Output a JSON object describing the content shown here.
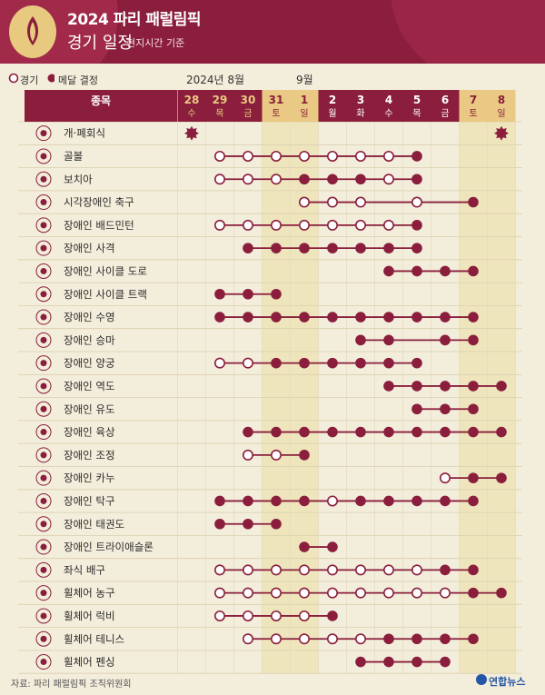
{
  "title": {
    "line1": "2024 파리 패럴림픽",
    "line2": "경기 일정",
    "sub": "현지시간 기준"
  },
  "legend": {
    "match": "경기",
    "medal": "메달 결정"
  },
  "months": {
    "aug": "2024년 8월",
    "sep": "9월"
  },
  "table_header": "종목",
  "colors": {
    "maroon": "#8a1e3c",
    "gold": "#e9c983",
    "cream": "#f4efdf",
    "line": "#8a1e3c"
  },
  "days": [
    {
      "num": "28",
      "wd": "수"
    },
    {
      "num": "29",
      "wd": "목"
    },
    {
      "num": "30",
      "wd": "금"
    },
    {
      "num": "31",
      "wd": "토"
    },
    {
      "num": "1",
      "wd": "일"
    },
    {
      "num": "2",
      "wd": "월"
    },
    {
      "num": "3",
      "wd": "화"
    },
    {
      "num": "4",
      "wd": "수"
    },
    {
      "num": "5",
      "wd": "목"
    },
    {
      "num": "6",
      "wd": "금"
    },
    {
      "num": "7",
      "wd": "토"
    },
    {
      "num": "8",
      "wd": "일"
    }
  ],
  "weekend_days": [
    3,
    4,
    10,
    11
  ],
  "sports": [
    {
      "name": "개·폐회식",
      "icon": "ceremony-icon",
      "ceremony": [
        0,
        11
      ],
      "cells": [
        0,
        0,
        0,
        0,
        0,
        0,
        0,
        0,
        0,
        0,
        0,
        0
      ]
    },
    {
      "name": "골볼",
      "icon": "goalball-icon",
      "cells": [
        0,
        1,
        1,
        1,
        1,
        1,
        1,
        1,
        2,
        0,
        0,
        0
      ]
    },
    {
      "name": "보치아",
      "icon": "boccia-icon",
      "cells": [
        0,
        1,
        1,
        1,
        2,
        2,
        2,
        1,
        2,
        0,
        0,
        0
      ]
    },
    {
      "name": "시각장애인 축구",
      "icon": "blind-football-icon",
      "cells": [
        0,
        0,
        0,
        0,
        1,
        1,
        1,
        0,
        1,
        0,
        2,
        0
      ]
    },
    {
      "name": "장애인 배드민턴",
      "icon": "badminton-icon",
      "cells": [
        0,
        1,
        1,
        1,
        1,
        1,
        1,
        1,
        2,
        0,
        0,
        0
      ]
    },
    {
      "name": "장애인 사격",
      "icon": "shooting-icon",
      "cells": [
        0,
        0,
        2,
        2,
        2,
        2,
        2,
        2,
        2,
        0,
        0,
        0
      ]
    },
    {
      "name": "장애인 사이클 도로",
      "icon": "road-cycling-icon",
      "cells": [
        0,
        0,
        0,
        0,
        0,
        0,
        0,
        2,
        2,
        2,
        2,
        0
      ]
    },
    {
      "name": "장애인 사이클 트랙",
      "icon": "track-cycling-icon",
      "cells": [
        0,
        2,
        2,
        2,
        0,
        0,
        0,
        0,
        0,
        0,
        0,
        0
      ]
    },
    {
      "name": "장애인 수영",
      "icon": "swimming-icon",
      "cells": [
        0,
        2,
        2,
        2,
        2,
        2,
        2,
        2,
        2,
        2,
        2,
        0
      ]
    },
    {
      "name": "장애인 승마",
      "icon": "equestrian-icon",
      "cells": [
        0,
        0,
        0,
        0,
        0,
        0,
        2,
        2,
        0,
        2,
        2,
        0
      ]
    },
    {
      "name": "장애인 양궁",
      "icon": "archery-icon",
      "cells": [
        0,
        1,
        1,
        2,
        2,
        2,
        2,
        2,
        2,
        0,
        0,
        0
      ]
    },
    {
      "name": "장애인 역도",
      "icon": "powerlifting-icon",
      "cells": [
        0,
        0,
        0,
        0,
        0,
        0,
        0,
        2,
        2,
        2,
        2,
        2
      ]
    },
    {
      "name": "장애인 유도",
      "icon": "judo-icon",
      "cells": [
        0,
        0,
        0,
        0,
        0,
        0,
        0,
        0,
        2,
        2,
        2,
        0
      ]
    },
    {
      "name": "장애인 육상",
      "icon": "athletics-icon",
      "cells": [
        0,
        0,
        2,
        2,
        2,
        2,
        2,
        2,
        2,
        2,
        2,
        2
      ]
    },
    {
      "name": "장애인 조정",
      "icon": "rowing-icon",
      "cells": [
        0,
        0,
        1,
        1,
        2,
        0,
        0,
        0,
        0,
        0,
        0,
        0
      ]
    },
    {
      "name": "장애인 카누",
      "icon": "canoe-icon",
      "cells": [
        0,
        0,
        0,
        0,
        0,
        0,
        0,
        0,
        0,
        1,
        2,
        2
      ]
    },
    {
      "name": "장애인 탁구",
      "icon": "table-tennis-icon",
      "cells": [
        0,
        2,
        2,
        2,
        2,
        1,
        2,
        2,
        2,
        2,
        2,
        0
      ]
    },
    {
      "name": "장애인 태권도",
      "icon": "taekwondo-icon",
      "cells": [
        0,
        2,
        2,
        2,
        0,
        0,
        0,
        0,
        0,
        0,
        0,
        0
      ]
    },
    {
      "name": "장애인 트라이애슬론",
      "icon": "triathlon-icon",
      "cells": [
        0,
        0,
        0,
        0,
        2,
        2,
        0,
        0,
        0,
        0,
        0,
        0
      ]
    },
    {
      "name": "좌식 배구",
      "icon": "sitting-volleyball-icon",
      "cells": [
        0,
        1,
        1,
        1,
        1,
        1,
        1,
        1,
        1,
        2,
        2,
        0
      ]
    },
    {
      "name": "휠체어 농구",
      "icon": "wheelchair-basketball-icon",
      "cells": [
        0,
        1,
        1,
        1,
        1,
        1,
        1,
        1,
        1,
        1,
        2,
        2
      ]
    },
    {
      "name": "휠체어 럭비",
      "icon": "wheelchair-rugby-icon",
      "cells": [
        0,
        1,
        1,
        1,
        1,
        2,
        0,
        0,
        0,
        0,
        0,
        0
      ]
    },
    {
      "name": "휠체어 테니스",
      "icon": "wheelchair-tennis-icon",
      "cells": [
        0,
        0,
        1,
        1,
        1,
        1,
        1,
        2,
        2,
        2,
        2,
        0
      ]
    },
    {
      "name": "휠체어 펜싱",
      "icon": "wheelchair-fencing-icon",
      "cells": [
        0,
        0,
        0,
        0,
        0,
        0,
        2,
        2,
        2,
        2,
        0,
        0
      ]
    }
  ],
  "footer": {
    "source": "자료: 파리 패럴림픽 조직위원회",
    "brand": "연합뉴스"
  }
}
